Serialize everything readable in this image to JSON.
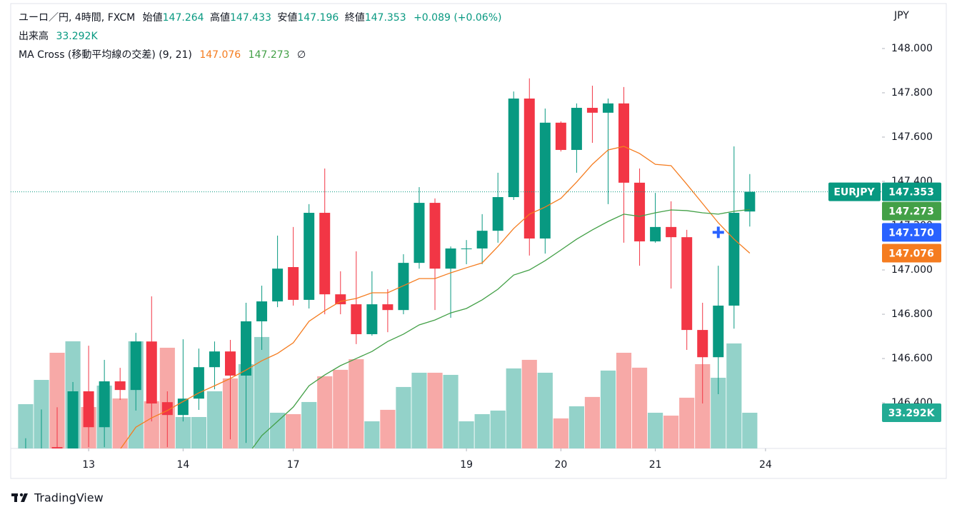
{
  "chart_data": {
    "type": "candlestick",
    "title": "ユーロ／円, 4時間, FXCM",
    "ohlc_labels": [
      "始値",
      "高値",
      "安値",
      "終値"
    ],
    "change": "+0.089 (+0.06%)",
    "volume_title": "出来高",
    "indicator": "MA Cross (移動平均線の交差) (9, 21)",
    "indicator_icon": "∅",
    "currency": "JPY",
    "symbol": "EURJPY",
    "brand": "TradingView",
    "crosshair": {
      "value": 147.17,
      "label": "147.170"
    },
    "up_color": "#089981",
    "down_color": "#f23645",
    "xlim": [
      -0.95,
      54.4
    ],
    "xticks": [
      {
        "value": 4,
        "label": "13"
      },
      {
        "value": 10,
        "label": "14"
      },
      {
        "value": 17,
        "label": "17"
      },
      {
        "value": 28,
        "label": "19"
      },
      {
        "value": 34,
        "label": "20"
      },
      {
        "value": 40,
        "label": "21"
      },
      {
        "value": 47,
        "label": "24"
      }
    ],
    "ylim": [
      146.194,
      148.219
    ],
    "yticks": [
      {
        "value": 146.4,
        "label": "146.400"
      },
      {
        "value": 146.6,
        "label": "146.600"
      },
      {
        "value": 146.8,
        "label": "146.800"
      },
      {
        "value": 147,
        "label": "147.000"
      },
      {
        "value": 147.2,
        "label": "147.200"
      },
      {
        "value": 147.4,
        "label": "147.400"
      },
      {
        "value": 147.6,
        "label": "147.600"
      },
      {
        "value": 147.8,
        "label": "147.800"
      },
      {
        "value": 148,
        "label": "148.000"
      }
    ],
    "open": [
      146.15,
      146.12,
      146.2,
      146.18,
      146.452,
      146.29,
      146.497,
      146.458,
      146.677,
      146.403,
      146.345,
      146.419,
      146.561,
      146.632,
      146.523,
      146.768,
      146.858,
      147.013,
      146.865,
      147.258,
      146.89,
      146.845,
      146.71,
      146.845,
      146.819,
      147.032,
      147.303,
      147.006,
      147.094,
      147.097,
      147.177,
      147.329,
      147.774,
      147.142,
      147.665,
      147.542,
      147.732,
      147.71,
      147.752,
      147.394,
      147.129,
      147.194,
      147.148,
      146.729,
      146.606,
      146.839,
      147.264
    ],
    "high": [
      146.24,
      146.37,
      146.38,
      146.494,
      146.658,
      146.594,
      146.558,
      146.716,
      146.881,
      146.452,
      146.687,
      146.645,
      146.677,
      146.684,
      146.852,
      146.929,
      147.155,
      147.194,
      147.297,
      147.458,
      146.994,
      147.084,
      146.994,
      146.913,
      147.071,
      147.374,
      147.323,
      147.106,
      147.135,
      147.252,
      147.439,
      147.806,
      147.865,
      147.729,
      147.671,
      147.752,
      147.832,
      147.774,
      147.826,
      147.458,
      147.348,
      147.31,
      147.181,
      146.852,
      147.019,
      147.558,
      147.433
    ],
    "low": [
      146.1,
      146.05,
      146.05,
      146.1,
      146.2,
      146.2,
      146.413,
      146.365,
      146.316,
      146.2,
      146.316,
      146.368,
      146.461,
      146.235,
      146.219,
      146.639,
      146.832,
      146.839,
      146.826,
      146.8,
      146.8,
      146.665,
      146.703,
      146.719,
      146.8,
      147.006,
      146.819,
      146.784,
      147.026,
      147.026,
      147.123,
      147.316,
      147.065,
      147.074,
      147.535,
      147.439,
      147.574,
      147.297,
      147.123,
      147.019,
      147.123,
      146.916,
      146.639,
      146.397,
      146.439,
      146.735,
      147.196
    ],
    "close": [
      146.18,
      146.17,
      146.12,
      146.452,
      146.29,
      146.497,
      146.458,
      146.677,
      146.397,
      146.345,
      146.419,
      146.561,
      146.632,
      146.523,
      146.768,
      146.858,
      147.006,
      146.865,
      147.258,
      146.89,
      146.845,
      146.71,
      146.845,
      146.819,
      147.032,
      147.303,
      147.006,
      147.097,
      147.097,
      147.177,
      147.329,
      147.774,
      147.142,
      147.665,
      147.542,
      147.732,
      147.71,
      147.752,
      147.394,
      147.129,
      147.194,
      147.148,
      146.729,
      146.606,
      146.839,
      147.258,
      147.353
    ],
    "volume": {
      "up_color": "#93d2c9",
      "down_color": "#f7a9a7",
      "y2lim": [
        0,
        418.1
      ],
      "last_label": "33.292K",
      "values": [
        41.3,
        63.9,
        89.2,
        99.9,
        38.6,
        58.6,
        46.6,
        99.9,
        44.0,
        93.9,
        29.3,
        29.3,
        53.3,
        65.3,
        78.6,
        103.9,
        33.3,
        32.0,
        43.3,
        67.3,
        73.3,
        83.2,
        25.3,
        36.0,
        57.3,
        70.6,
        70.6,
        68.6,
        25.3,
        32.0,
        35.3,
        74.6,
        82.6,
        70.6,
        28.0,
        39.3,
        48.0,
        72.6,
        89.2,
        75.3,
        33.3,
        30.6,
        47.3,
        78.6,
        65.9,
        97.9,
        33.292
      ]
    },
    "series": [
      {
        "color": "#f57c1f",
        "values": [
          null,
          null,
          null,
          null,
          null,
          null,
          146.19,
          146.29,
          146.332,
          146.365,
          146.406,
          146.445,
          146.477,
          146.51,
          146.548,
          146.59,
          146.623,
          146.671,
          146.768,
          146.816,
          146.858,
          146.871,
          146.897,
          146.897,
          146.929,
          146.961,
          146.961,
          146.987,
          147.01,
          147.032,
          147.106,
          147.187,
          147.252,
          147.284,
          147.323,
          147.397,
          147.477,
          147.542,
          147.558,
          147.526,
          147.477,
          147.471,
          147.387,
          147.3,
          147.213,
          147.139,
          147.076
        ]
      },
      {
        "color": "#43a047",
        "values": [
          null,
          null,
          null,
          null,
          null,
          null,
          null,
          null,
          null,
          null,
          null,
          null,
          null,
          null,
          146.155,
          146.252,
          146.316,
          146.381,
          146.477,
          146.526,
          146.568,
          146.6,
          146.632,
          146.677,
          146.71,
          146.752,
          146.774,
          146.806,
          146.826,
          146.865,
          146.913,
          146.977,
          147.0,
          147.042,
          147.09,
          147.139,
          147.181,
          147.219,
          147.252,
          147.242,
          147.258,
          147.271,
          147.268,
          147.258,
          147.252,
          147.265,
          147.273
        ]
      }
    ]
  }
}
